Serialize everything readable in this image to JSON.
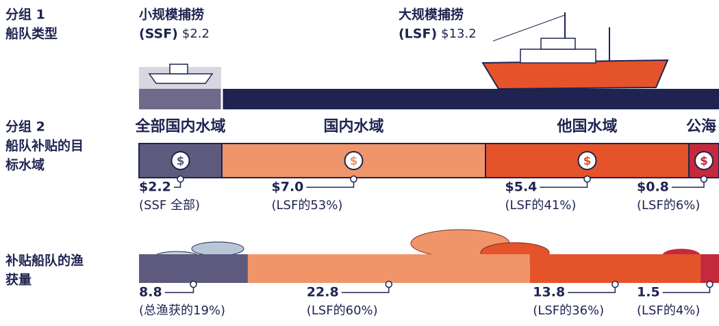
{
  "chart_data": [
    {
      "type": "stacked-bar",
      "label": [
        "分组 1",
        "船队类型"
      ],
      "names": [
        "小规模捕捞",
        "大规模捕捞"
      ],
      "codes": [
        "(SSF)",
        "(LSF)"
      ],
      "values": [
        2.2,
        13.2
      ],
      "value_labels": [
        "$2.2",
        "$13.2"
      ],
      "colors": [
        "#6f6a8c",
        "#1e2350"
      ]
    },
    {
      "type": "stacked-bar",
      "label": [
        "分组 2",
        "船队补贴的目",
        "标水域"
      ],
      "names": [
        "全部国内水域",
        "国内水域",
        "他国水域",
        "公海"
      ],
      "values": [
        2.2,
        7.0,
        5.4,
        0.8
      ],
      "value_labels": [
        "$2.2",
        "$7.0",
        "$5.4",
        "$0.8"
      ],
      "notes": [
        "(SSF 全部)",
        "(LSF的53%)",
        "(LSF的41%)",
        "(LSF的6%)"
      ],
      "symbol": "$",
      "colors": [
        "#5d5a7e",
        "#f0956a",
        "#e5532b",
        "#c52a3a"
      ]
    },
    {
      "type": "stacked-bar",
      "label": [
        "补贴船队的渔",
        "获量"
      ],
      "values": [
        8.8,
        22.8,
        13.8,
        1.5
      ],
      "notes": [
        "(总渔获的19%)",
        "(LSF的60%)",
        "(LSF的36%)",
        "(LSF的4%)"
      ],
      "colors": [
        "#5d5a7e",
        "#f0956a",
        "#e5532b",
        "#c52a3a"
      ]
    }
  ]
}
